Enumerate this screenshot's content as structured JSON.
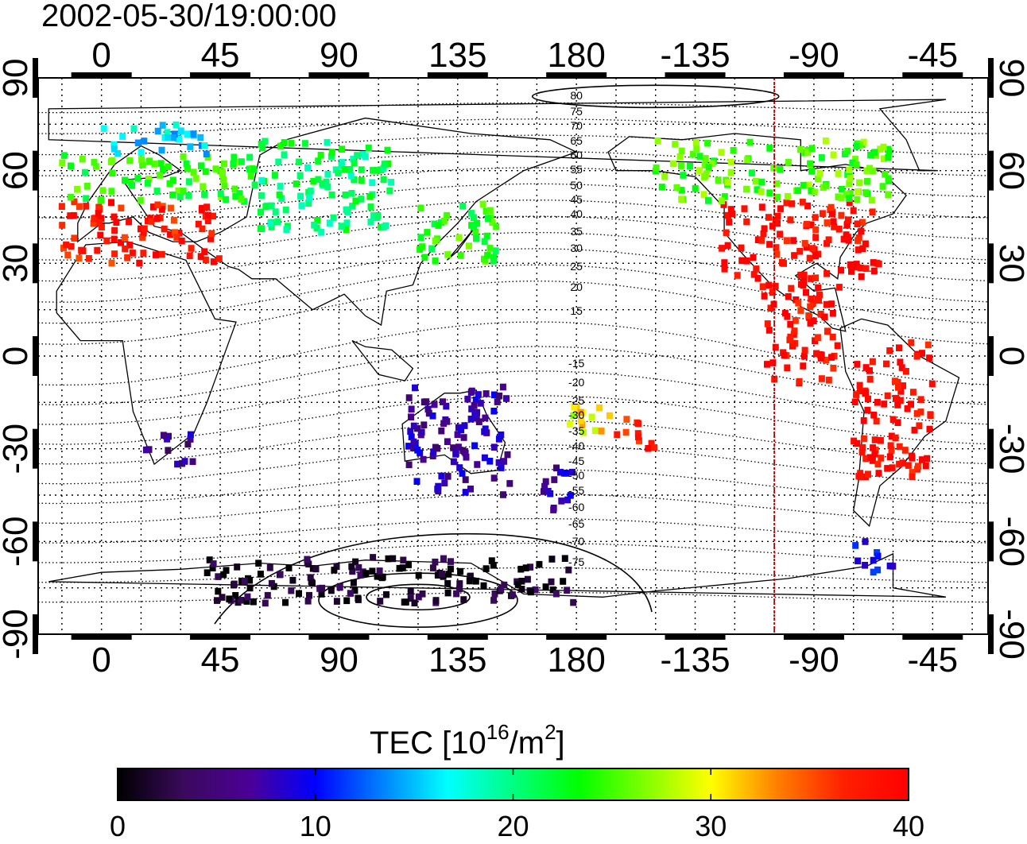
{
  "title": "2002-05-30/19:00:00",
  "map": {
    "lon_ticks": [
      "0",
      "45",
      "90",
      "135",
      "180",
      "-135",
      "-90",
      "-45"
    ],
    "lon_values": [
      0,
      45,
      90,
      135,
      180,
      225,
      270,
      315
    ],
    "lat_ticks": [
      "90",
      "60",
      "30",
      "0",
      "-30",
      "-60",
      "-90"
    ],
    "lat_values": [
      90,
      60,
      30,
      0,
      -30,
      -60,
      -90
    ],
    "lon_range": [
      -24,
      336
    ],
    "lat_range": [
      -90,
      90
    ],
    "grid": "dotted, every 15 degrees",
    "marker_line_lon": -105,
    "marker_line_color": "#dd0000",
    "contour_labels_north": [
      "80",
      "75",
      "70",
      "65",
      "60",
      "55",
      "50",
      "45",
      "40",
      "35",
      "30",
      "25",
      "20",
      "15"
    ],
    "contour_labels_south": [
      "-15",
      "-20",
      "-25",
      "-30",
      "-35",
      "-40",
      "-45",
      "-50",
      "-55",
      "-60",
      "-65",
      "-70",
      "-75"
    ]
  },
  "colorbar": {
    "label_main": "TEC  [10",
    "label_exp1": "16",
    "label_mid": "/m",
    "label_exp2": "2",
    "label_end": "]",
    "ticks": [
      "0",
      "10",
      "20",
      "30",
      "40"
    ],
    "tick_values": [
      0,
      10,
      20,
      30,
      40
    ],
    "range": [
      0,
      40
    ],
    "colors": [
      "#000000",
      "#3a0a5c",
      "#4b0096",
      "#0000ff",
      "#0080ff",
      "#00ffff",
      "#00ff80",
      "#00ff00",
      "#80ff00",
      "#ffff00",
      "#ff8000",
      "#ff2000",
      "#ff0000"
    ]
  },
  "chart_data": {
    "type": "heatmap",
    "title": "2002-05-30/19:00:00",
    "colorbar_label": "TEC [10^16/m^2]",
    "value_range": [
      0,
      40
    ],
    "regions": [
      {
        "lon": [
          -15,
          45
        ],
        "lat": [
          30,
          50
        ],
        "tec": 38
      },
      {
        "lon": [
          -15,
          60
        ],
        "lat": [
          50,
          65
        ],
        "tec": 24
      },
      {
        "lon": [
          0,
          40
        ],
        "lat": [
          65,
          75
        ],
        "tec": 16
      },
      {
        "lon": [
          60,
          110
        ],
        "lat": [
          40,
          70
        ],
        "tec": 21
      },
      {
        "lon": [
          120,
          150
        ],
        "lat": [
          30,
          50
        ],
        "tec": 24
      },
      {
        "lon": [
          -125,
          -65
        ],
        "lat": [
          25,
          50
        ],
        "tec": 39
      },
      {
        "lon": [
          -150,
          -60
        ],
        "lat": [
          50,
          70
        ],
        "tec": 25
      },
      {
        "lon": [
          -110,
          -80
        ],
        "lat": [
          -10,
          25
        ],
        "tec": 39
      },
      {
        "lon": [
          -75,
          -45
        ],
        "lat": [
          -40,
          5
        ],
        "tec": 39
      },
      {
        "lon": [
          -75,
          -60
        ],
        "lat": [
          -70,
          -60
        ],
        "tec": 10
      },
      {
        "lon": [
          115,
          155
        ],
        "lat": [
          -45,
          -10
        ],
        "tec": 7
      },
      {
        "lon": [
          165,
          180
        ],
        "lat": [
          -50,
          -35
        ],
        "tec": 7
      },
      {
        "lon": [
          15,
          35
        ],
        "lat": [
          -35,
          -25
        ],
        "tec": 6
      },
      {
        "lon": [
          40,
          180
        ],
        "lat": [
          -80,
          -65
        ],
        "tec": 1
      },
      {
        "lon": [
          -165,
          -150
        ],
        "lat": [
          -30,
          -20
        ],
        "tec": 38
      },
      {
        "lon": [
          175,
          195
        ],
        "lat": [
          -25,
          -15
        ],
        "tec": 30
      }
    ]
  }
}
